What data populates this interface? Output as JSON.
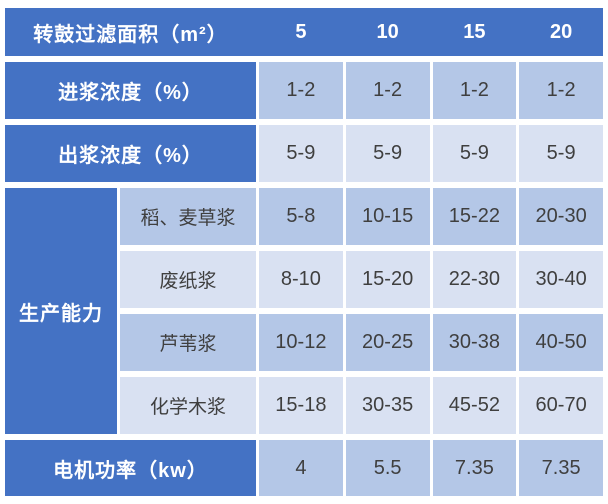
{
  "theme": {
    "header-blue": "#4472c4",
    "band-medium": "#b4c7e7",
    "band-light": "#d9e1f2",
    "text-dark": "#3f3f3f",
    "text-light": "#ffffff",
    "page-bg": "#ffffff"
  },
  "table": {
    "header": {
      "label": "转鼓过滤面积（m²）",
      "columns": [
        "5",
        "10",
        "15",
        "20"
      ]
    },
    "rows": [
      {
        "label": "进浆浓度（%）",
        "values": [
          "1-2",
          "1-2",
          "1-2",
          "1-2"
        ]
      },
      {
        "label": "出浆浓度（%）",
        "values": [
          "5-9",
          "5-9",
          "5-9",
          "5-9"
        ]
      }
    ],
    "capacity": {
      "label": "生产能力",
      "rows": [
        {
          "label": "稻、麦草浆",
          "values": [
            "5-8",
            "10-15",
            "15-22",
            "20-30"
          ]
        },
        {
          "label": "废纸浆",
          "values": [
            "8-10",
            "15-20",
            "22-30",
            "30-40"
          ]
        },
        {
          "label": "芦苇浆",
          "values": [
            "10-12",
            "20-25",
            "30-38",
            "40-50"
          ]
        },
        {
          "label": "化学木浆",
          "values": [
            "15-18",
            "30-35",
            "45-52",
            "60-70"
          ]
        }
      ]
    },
    "footer": {
      "label": "电机功率（kw）",
      "values": [
        "4",
        "5.5",
        "7.35",
        "7.35"
      ]
    }
  }
}
